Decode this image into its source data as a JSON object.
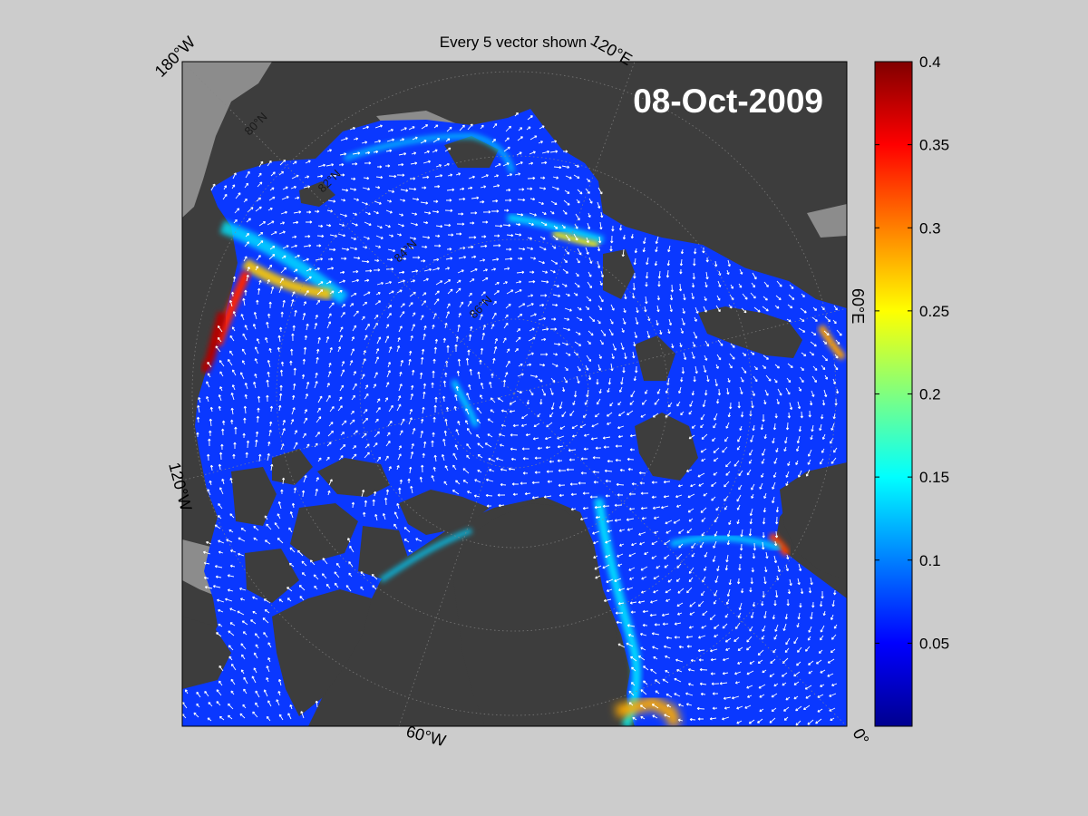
{
  "figure": {
    "title": "Every 5 vector shown",
    "date": "08-Oct-2009"
  },
  "map": {
    "projection": "polar stereographic (North Pole)",
    "longitude_labels": {
      "top_left": "180°W",
      "top_right": "120°E",
      "right": "60°E",
      "left": "120°W",
      "bottom": "60°W",
      "bottom_right": "0°"
    },
    "latitude_labels": [
      "86°N",
      "84°N",
      "82°N",
      "80°N"
    ],
    "colors": {
      "ocean_min": "#000080",
      "land": "#3d3d3d",
      "no_data": "#8c8c8c",
      "vectors": "#ffffff",
      "figure_background": "#cccccc"
    }
  },
  "colorbar": {
    "colormap": "jet",
    "range": [
      0,
      0.4
    ],
    "ticks": [
      "0.4",
      "0.35",
      "0.3",
      "0.25",
      "0.2",
      "0.15",
      "0.1",
      "0.05"
    ],
    "tick_values": [
      0.4,
      0.35,
      0.3,
      0.25,
      0.2,
      0.15,
      0.1,
      0.05
    ],
    "jet_stops": [
      "#00008f",
      "#0000ff",
      "#00ffff",
      "#ffff00",
      "#ff0000",
      "#800000"
    ]
  }
}
